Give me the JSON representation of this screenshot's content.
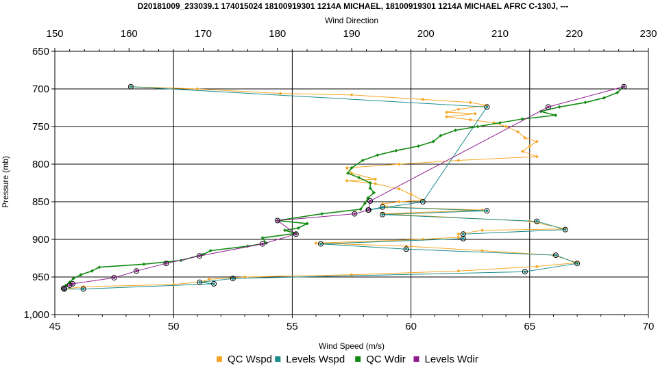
{
  "chart_data": {
    "type": "line",
    "title": "D20181009_233039.1 174015024 18100919301 1214A MICHAEL, 18100919301 1214A MICHAEL AFRC C-130J, ---",
    "x_top_label": "Wind Direction",
    "x_bottom_label": "Wind Speed (m/s)",
    "ylabel": "Pressure (mb)",
    "y_reversed": true,
    "grid": true,
    "legend_position": "bottom",
    "x_bottom_range": [
      45,
      70
    ],
    "x_top_range": [
      150,
      230
    ],
    "y_range": [
      650,
      1000
    ],
    "x_bottom_ticks": [
      "45",
      "50",
      "55",
      "60",
      "65",
      "70"
    ],
    "x_top_ticks": [
      "150",
      "160",
      "170",
      "180",
      "190",
      "200",
      "210",
      "220",
      "230"
    ],
    "y_ticks": [
      "650",
      "700",
      "750",
      "800",
      "850",
      "900",
      "950",
      "1,000"
    ],
    "colors": {
      "qc_wspd": "#f5a623",
      "levels_wspd": "#1a8c8c",
      "qc_wdir": "#118a11",
      "levels_wdir": "#8e1b8e"
    },
    "series": [
      {
        "name": "QC Wspd",
        "axis": "bottom",
        "points": [
          [
            48.2,
            697
          ],
          [
            51,
            700
          ],
          [
            54.5,
            706
          ],
          [
            57.5,
            708
          ],
          [
            60.5,
            714
          ],
          [
            62.5,
            718
          ],
          [
            63.2,
            722
          ],
          [
            62,
            727
          ],
          [
            61.5,
            731
          ],
          [
            62.7,
            733
          ],
          [
            61.5,
            737
          ],
          [
            62.5,
            741
          ],
          [
            63.5,
            745
          ],
          [
            64,
            750
          ],
          [
            64.5,
            757
          ],
          [
            64.8,
            765
          ],
          [
            65.3,
            770
          ],
          [
            65,
            776
          ],
          [
            64.7,
            783
          ],
          [
            65.3,
            790
          ],
          [
            62,
            795
          ],
          [
            59.5,
            800
          ],
          [
            57.3,
            805
          ],
          [
            57.5,
            812
          ],
          [
            58.5,
            820
          ],
          [
            57.3,
            822
          ],
          [
            58.5,
            826
          ],
          [
            59.5,
            833
          ],
          [
            60,
            840
          ],
          [
            60.5,
            848
          ],
          [
            59.5,
            850
          ],
          [
            58.8,
            853
          ],
          [
            59,
            857
          ],
          [
            63,
            861
          ],
          [
            58.8,
            866
          ],
          [
            65,
            876
          ],
          [
            66.5,
            886
          ],
          [
            63,
            888
          ],
          [
            62,
            893
          ],
          [
            62,
            897
          ],
          [
            60.5,
            900
          ],
          [
            56,
            905
          ],
          [
            59.8,
            909
          ],
          [
            63,
            915
          ],
          [
            66,
            921
          ],
          [
            67,
            931
          ],
          [
            65.3,
            936
          ],
          [
            62,
            942
          ],
          [
            57.5,
            947
          ],
          [
            53,
            950
          ],
          [
            51.5,
            953
          ],
          [
            51.3,
            956
          ],
          [
            50,
            960
          ],
          [
            46.2,
            963
          ],
          [
            45.4,
            966
          ]
        ]
      },
      {
        "name": "Levels Wspd",
        "axis": "bottom",
        "points": [
          [
            48.2,
            697
          ],
          [
            63.2,
            724
          ],
          [
            60.5,
            850
          ],
          [
            58.2,
            861
          ],
          [
            58.8,
            857
          ],
          [
            63.2,
            862
          ],
          [
            58.8,
            867
          ],
          [
            65.3,
            876
          ],
          [
            66.5,
            887
          ],
          [
            62.2,
            893
          ],
          [
            62.2,
            899
          ],
          [
            56.2,
            906
          ],
          [
            59.8,
            913
          ],
          [
            66.1,
            921
          ],
          [
            67,
            932
          ],
          [
            64.8,
            943
          ],
          [
            52.5,
            952
          ],
          [
            51.1,
            957
          ],
          [
            51.7,
            959
          ],
          [
            46.2,
            966
          ],
          [
            45.4,
            966
          ]
        ]
      },
      {
        "name": "QC Wdir",
        "axis": "top",
        "points": [
          [
            226.7,
            697
          ],
          [
            225.8,
            705
          ],
          [
            224,
            712
          ],
          [
            221.5,
            718
          ],
          [
            218,
            724
          ],
          [
            215.5,
            730
          ],
          [
            217.5,
            735
          ],
          [
            213,
            740
          ],
          [
            210,
            745
          ],
          [
            207,
            750
          ],
          [
            204,
            755
          ],
          [
            202,
            762
          ],
          [
            201,
            770
          ],
          [
            199,
            776
          ],
          [
            196,
            782
          ],
          [
            193.5,
            788
          ],
          [
            191.5,
            795
          ],
          [
            190,
            805
          ],
          [
            189.5,
            812
          ],
          [
            191,
            818
          ],
          [
            192.5,
            825
          ],
          [
            192.5,
            832
          ],
          [
            193,
            838
          ],
          [
            192.2,
            845
          ],
          [
            191.8,
            852
          ],
          [
            191.2,
            860
          ],
          [
            186,
            866
          ],
          [
            180,
            875
          ],
          [
            184,
            879
          ],
          [
            182.8,
            885
          ],
          [
            181,
            888
          ],
          [
            182.5,
            892
          ],
          [
            178,
            898
          ],
          [
            178.5,
            905
          ],
          [
            176,
            909
          ],
          [
            171,
            915
          ],
          [
            170,
            920
          ],
          [
            167,
            928
          ],
          [
            162,
            933
          ],
          [
            156,
            937
          ],
          [
            155,
            942
          ],
          [
            153.5,
            947
          ],
          [
            152.5,
            952
          ],
          [
            152,
            957
          ],
          [
            151.5,
            961
          ],
          [
            151,
            966
          ]
        ]
      },
      {
        "name": "Levels Wdir",
        "axis": "top",
        "points": [
          [
            226.7,
            697
          ],
          [
            216.5,
            724
          ],
          [
            192.5,
            849
          ],
          [
            192.3,
            861
          ],
          [
            190.4,
            866
          ],
          [
            180,
            875
          ],
          [
            182.5,
            893
          ],
          [
            178,
            906
          ],
          [
            169.5,
            922
          ],
          [
            165,
            932
          ],
          [
            161,
            942
          ],
          [
            158,
            951
          ],
          [
            152.4,
            959
          ],
          [
            152,
            961
          ],
          [
            151.2,
            965
          ]
        ]
      }
    ]
  }
}
